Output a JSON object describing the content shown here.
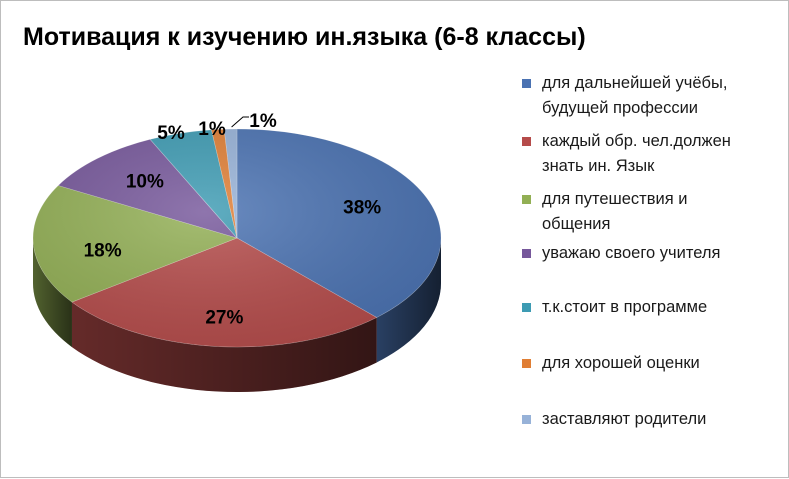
{
  "chart_data": {
    "type": "pie",
    "title": "Мотивация к изучению ин.языка (6-8 классы)",
    "categories": [
      "для дальнейшей учёбы, будущей профессии",
      "каждый обр. чел.должен знать ин. Язык",
      "для путешествия и общения",
      "уважаю своего учителя",
      "т.к.стоит в программе",
      "для хорошей оценки",
      "заставляют родители"
    ],
    "legend_lines": [
      [
        "для дальнейшей учёбы,",
        "будущей профессии"
      ],
      [
        "каждый обр. чел.должен",
        "знать ин. Язык"
      ],
      [
        "для путешествия и",
        "общения"
      ],
      [
        "уважаю своего учителя"
      ],
      [
        "т.к.стоит в программе"
      ],
      [
        "для хорошей оценки"
      ],
      [
        "заставляют родители"
      ]
    ],
    "values": [
      38,
      27,
      18,
      10,
      5,
      1,
      1
    ],
    "labels": [
      "38%",
      "27%",
      "18%",
      "10%",
      "5%",
      "1%",
      "1%"
    ],
    "colors": [
      "#4a72b2",
      "#b54b4a",
      "#92af54",
      "#76579b",
      "#3d9bb3",
      "#e07e34",
      "#97b2d8"
    ],
    "legend_position": "right",
    "style": "3d"
  }
}
